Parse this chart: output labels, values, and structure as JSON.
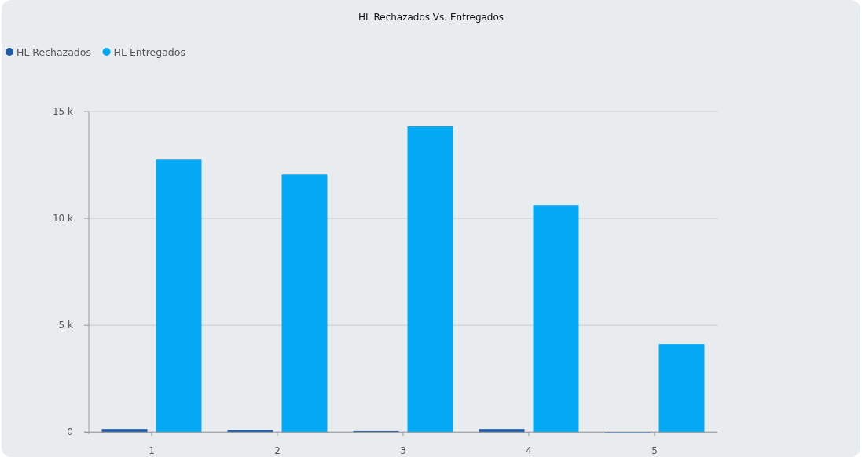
{
  "chart_data": {
    "type": "bar",
    "title": "HL Rechazados Vs. Entregados",
    "categories": [
      "1",
      "2",
      "3",
      "4",
      "5"
    ],
    "series": [
      {
        "name": "HL Rechazados",
        "color": "#1f5ba8",
        "values": [
          150,
          100,
          50,
          150,
          -50
        ]
      },
      {
        "name": "HL Entregados",
        "color": "#03a9f4",
        "values": [
          12750,
          12050,
          14300,
          10620,
          4120
        ]
      }
    ],
    "ylim": [
      -100,
      15000
    ],
    "yticks": [
      {
        "value": 0,
        "label": "0"
      },
      {
        "value": 5000,
        "label": "5 k"
      },
      {
        "value": 10000,
        "label": "10 k"
      },
      {
        "value": 15000,
        "label": "15 k"
      }
    ],
    "grid": "y",
    "legend": "top left"
  }
}
